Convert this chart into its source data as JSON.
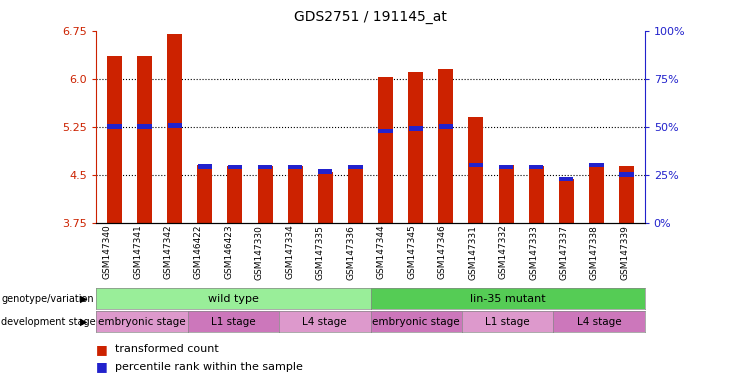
{
  "title": "GDS2751 / 191145_at",
  "samples": [
    "GSM147340",
    "GSM147341",
    "GSM147342",
    "GSM146422",
    "GSM146423",
    "GSM147330",
    "GSM147334",
    "GSM147335",
    "GSM147336",
    "GSM147344",
    "GSM147345",
    "GSM147346",
    "GSM147331",
    "GSM147332",
    "GSM147333",
    "GSM147337",
    "GSM147338",
    "GSM147339"
  ],
  "red_values": [
    6.35,
    6.35,
    6.7,
    4.65,
    4.63,
    4.63,
    4.63,
    4.55,
    4.63,
    6.03,
    6.1,
    6.15,
    5.4,
    4.65,
    4.63,
    4.43,
    4.63,
    4.63
  ],
  "blue_values": [
    5.25,
    5.25,
    5.27,
    4.63,
    4.62,
    4.62,
    4.62,
    4.55,
    4.62,
    5.18,
    5.22,
    5.25,
    4.65,
    4.62,
    4.62,
    4.43,
    4.65,
    4.5
  ],
  "ymin": 3.75,
  "ymax": 6.75,
  "yticks": [
    3.75,
    4.5,
    5.25,
    6.0,
    6.75
  ],
  "right_yticks": [
    0,
    25,
    50,
    75,
    100
  ],
  "right_ytick_labels": [
    "0%",
    "25%",
    "50%",
    "75%",
    "100%"
  ],
  "bar_color": "#cc2200",
  "blue_color": "#2222cc",
  "grid_color": "#000000",
  "genotype_groups": [
    {
      "name": "wild type",
      "start": 0,
      "end": 9,
      "color": "#99ee99"
    },
    {
      "name": "lin-35 mutant",
      "start": 9,
      "end": 18,
      "color": "#55cc55"
    }
  ],
  "stage_groups": [
    {
      "name": "embryonic stage",
      "start": 0,
      "end": 3,
      "color": "#dd99cc"
    },
    {
      "name": "L1 stage",
      "start": 3,
      "end": 6,
      "color": "#cc77bb"
    },
    {
      "name": "L4 stage",
      "start": 6,
      "end": 9,
      "color": "#dd99cc"
    },
    {
      "name": "embryonic stage",
      "start": 9,
      "end": 12,
      "color": "#cc77bb"
    },
    {
      "name": "L1 stage",
      "start": 12,
      "end": 15,
      "color": "#dd99cc"
    },
    {
      "name": "L4 stage",
      "start": 15,
      "end": 18,
      "color": "#cc77bb"
    }
  ],
  "legend": [
    {
      "label": "transformed count",
      "color": "#cc2200"
    },
    {
      "label": "percentile rank within the sample",
      "color": "#2222cc"
    }
  ],
  "bar_width": 0.5,
  "background_color": "#ffffff",
  "ylabel_color": "#cc2200",
  "right_ylabel_color": "#2222cc"
}
